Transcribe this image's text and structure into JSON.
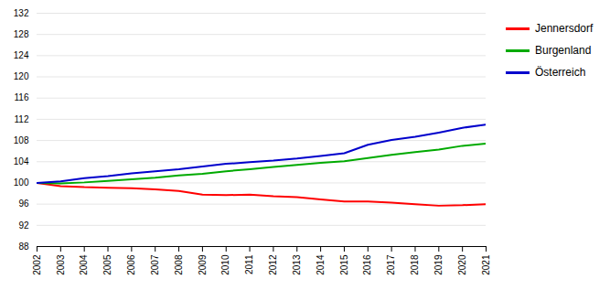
{
  "chart_data": {
    "type": "line",
    "x": [
      2002,
      2003,
      2004,
      2005,
      2006,
      2007,
      2008,
      2009,
      2010,
      2011,
      2012,
      2013,
      2014,
      2015,
      2016,
      2017,
      2018,
      2019,
      2020,
      2021
    ],
    "series": [
      {
        "name": "Jennersdorf",
        "color": "#ff0000",
        "values": [
          100.0,
          99.4,
          99.2,
          99.1,
          99.0,
          98.8,
          98.5,
          97.8,
          97.7,
          97.8,
          97.5,
          97.3,
          96.9,
          96.5,
          96.5,
          96.3,
          96.0,
          95.7,
          95.8,
          96.0
        ]
      },
      {
        "name": "Burgenland",
        "color": "#00aa00",
        "values": [
          100.0,
          99.9,
          100.1,
          100.4,
          100.7,
          101.0,
          101.4,
          101.7,
          102.2,
          102.6,
          103.0,
          103.4,
          103.8,
          104.1,
          104.7,
          105.3,
          105.8,
          106.3,
          107.0,
          107.4
        ]
      },
      {
        "name": "Österreich",
        "color": "#0000cc",
        "values": [
          100.0,
          100.3,
          100.9,
          101.3,
          101.8,
          102.2,
          102.6,
          103.1,
          103.6,
          103.9,
          104.2,
          104.6,
          105.1,
          105.6,
          107.2,
          108.1,
          108.7,
          109.5,
          110.4,
          111.0
        ]
      }
    ],
    "xlim": [
      2002,
      2021
    ],
    "xticks": [
      2002,
      2003,
      2004,
      2005,
      2006,
      2007,
      2008,
      2009,
      2010,
      2011,
      2012,
      2013,
      2014,
      2015,
      2016,
      2017,
      2018,
      2019,
      2020,
      2021
    ],
    "ylim": [
      88,
      132
    ],
    "yticks": [
      88,
      92,
      96,
      100,
      104,
      108,
      112,
      116,
      120,
      124,
      128,
      132
    ],
    "grid": true,
    "legend": "right"
  }
}
